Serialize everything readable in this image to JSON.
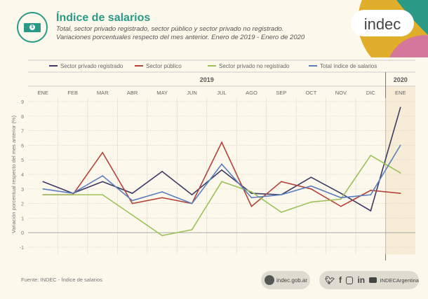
{
  "header": {
    "title": "Índice de salarios",
    "subtitle_1": "Total, sector privado registrado, sector público y sector privado no registrado.",
    "subtitle_2": "Variaciones porcentuales respecto del mes anterior. Enero de 2019 - Enero de 2020",
    "icon": "money-bill-icon",
    "logo_text": "indec"
  },
  "footer": {
    "source": "Fuente: INDEC - Índice de salarios",
    "web": "indec.gob.ar",
    "social_handle": "INDECArgentina",
    "social_icons": [
      "twitter-icon",
      "facebook-icon",
      "instagram-icon",
      "linkedin-icon",
      "youtube-icon"
    ]
  },
  "chart_data": {
    "type": "line",
    "ylabel": "Variación porcentual respecto del mes anterior (%)",
    "ylim": [
      -1,
      9
    ],
    "yticks": [
      -1,
      0,
      1,
      2,
      3,
      4,
      5,
      6,
      7,
      8,
      9
    ],
    "years": [
      {
        "label": "2019",
        "months": 12
      },
      {
        "label": "2020",
        "months": 1
      }
    ],
    "categories": [
      "ENE",
      "FEB",
      "MAR",
      "ABR",
      "MAY",
      "JUN",
      "JUL",
      "AGO",
      "SEP",
      "OCT",
      "NOV",
      "DIC",
      "ENE"
    ],
    "legend_position": "top",
    "grid": true,
    "series": [
      {
        "name": "Sector privado registrado",
        "color": "#3d3a66",
        "values": [
          3.5,
          2.7,
          3.5,
          2.7,
          4.2,
          2.6,
          4.3,
          2.7,
          2.6,
          3.8,
          2.7,
          1.5,
          8.6
        ]
      },
      {
        "name": "Sector público",
        "color": "#b4423a",
        "values": [
          2.6,
          2.6,
          5.5,
          2.0,
          2.4,
          2.0,
          6.2,
          1.8,
          3.5,
          3.0,
          1.8,
          2.9,
          2.7
        ]
      },
      {
        "name": "Sector privado no registrado",
        "color": "#9cc157",
        "values": [
          2.6,
          2.6,
          2.6,
          1.2,
          -0.2,
          0.2,
          3.5,
          2.8,
          1.4,
          2.1,
          2.3,
          5.3,
          4.1
        ]
      },
      {
        "name": "Total índice de salarios",
        "color": "#5a7fbf",
        "values": [
          3.0,
          2.7,
          3.9,
          2.2,
          2.8,
          2.0,
          4.7,
          2.4,
          2.6,
          3.2,
          2.4,
          2.6,
          6.0
        ]
      }
    ]
  }
}
